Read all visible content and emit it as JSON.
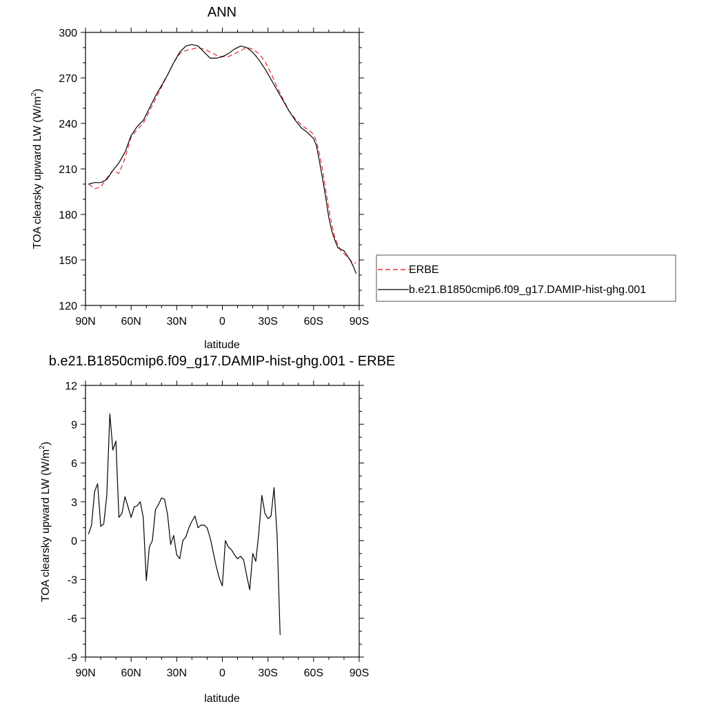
{
  "chart_data": [
    {
      "type": "line",
      "title": "ANN",
      "xlabel": "latitude",
      "ylabel": "TOA clearsky upward LW (W/m",
      "ylabel_sup": "2",
      "ylabel_close": ")",
      "x_direction": "north-to-south",
      "xlim": [
        90,
        -90
      ],
      "ylim": [
        120,
        300
      ],
      "xticks": [
        {
          "value": 90,
          "label": "90N"
        },
        {
          "value": 60,
          "label": "60N"
        },
        {
          "value": 30,
          "label": "30N"
        },
        {
          "value": 0,
          "label": "0"
        },
        {
          "value": -30,
          "label": "30S"
        },
        {
          "value": -60,
          "label": "60S"
        },
        {
          "value": -90,
          "label": "90S"
        }
      ],
      "yticks": [
        120,
        150,
        180,
        210,
        240,
        270,
        300
      ],
      "legend_position": "right",
      "series": [
        {
          "name": "ERBE",
          "color": "#e8262b",
          "style": "dashed",
          "x": [
            88,
            84,
            80,
            76,
            72,
            68,
            64,
            60,
            56,
            52,
            48,
            44,
            40,
            36,
            32,
            28,
            24,
            20,
            16,
            12,
            8,
            4,
            0,
            -4,
            -8,
            -12,
            -16,
            -20,
            -24,
            -28,
            -32,
            -36,
            -40,
            -44,
            -48,
            -52,
            -56,
            -60,
            -62,
            -64,
            -66,
            -68,
            -70,
            -72,
            -74,
            -76,
            -78,
            -80,
            -82,
            -84,
            -86,
            -88
          ],
          "y": [
            200,
            197,
            198,
            204,
            209,
            207,
            217,
            231,
            236,
            240,
            248,
            256,
            264,
            272,
            280,
            286,
            288,
            289,
            290,
            289,
            287,
            285,
            284,
            284,
            286,
            288,
            290,
            289,
            286,
            281,
            273,
            264,
            256,
            248,
            243,
            239,
            236,
            233,
            228,
            219,
            209,
            196,
            184,
            173,
            165,
            160,
            156,
            154,
            152,
            150,
            148,
            148
          ]
        },
        {
          "name": "b.e21.B1850cmip6.f09_g17.DAMIP-hist-ghg.001",
          "color": "#000000",
          "style": "solid",
          "x": [
            88,
            84,
            80,
            76,
            72,
            68,
            64,
            60,
            56,
            52,
            48,
            44,
            40,
            36,
            32,
            28,
            24,
            20,
            16,
            12,
            8,
            4,
            0,
            -4,
            -8,
            -12,
            -16,
            -20,
            -24,
            -28,
            -32,
            -36,
            -40,
            -44,
            -48,
            -52,
            -56,
            -60,
            -62,
            -64,
            -66,
            -68,
            -70,
            -72,
            -74,
            -76,
            -78,
            -80,
            -82,
            -84,
            -86,
            -88
          ],
          "y": [
            200,
            201,
            201,
            203,
            209,
            214,
            221,
            232,
            238,
            242,
            250,
            258,
            265,
            272,
            280,
            287,
            291,
            292,
            291,
            287,
            283,
            283,
            284,
            286,
            289,
            291,
            290,
            287,
            282,
            276,
            269,
            262,
            255,
            248,
            242,
            237,
            234,
            230,
            225,
            214,
            203,
            191,
            178,
            169,
            163,
            158,
            157,
            156,
            153,
            150,
            146,
            141
          ]
        }
      ]
    },
    {
      "type": "line",
      "title": "b.e21.B1850cmip6.f09_g17.DAMIP-hist-ghg.001 - ERBE",
      "xlabel": "latitude",
      "ylabel": "TOA clearsky upward LW (W/m",
      "ylabel_sup": "2",
      "ylabel_close": ")",
      "x_direction": "north-to-south",
      "xlim": [
        90,
        -90
      ],
      "ylim": [
        -9,
        12
      ],
      "xticks": [
        {
          "value": 90,
          "label": "90N"
        },
        {
          "value": 60,
          "label": "60N"
        },
        {
          "value": 30,
          "label": "30N"
        },
        {
          "value": 0,
          "label": "0"
        },
        {
          "value": -30,
          "label": "30S"
        },
        {
          "value": -60,
          "label": "60S"
        },
        {
          "value": -90,
          "label": "90S"
        }
      ],
      "yticks": [
        -9,
        -6,
        -3,
        0,
        3,
        6,
        9,
        12
      ],
      "series": [
        {
          "color": "#000000",
          "style": "solid",
          "x": [
            88,
            86,
            84,
            82,
            80,
            78,
            76,
            74,
            72,
            70,
            68,
            66,
            64,
            62,
            60,
            58,
            56,
            54,
            52,
            50,
            48,
            46,
            44,
            42,
            40,
            38,
            36,
            34,
            32,
            30,
            28,
            26,
            24,
            22,
            20,
            18,
            16,
            14,
            12,
            10,
            8,
            6,
            4,
            2,
            0,
            -2,
            -4,
            -6,
            -8,
            -10,
            -12,
            -14,
            -16,
            -18,
            -20,
            -22,
            -24,
            -26,
            -28,
            -30,
            -32,
            -34,
            -36,
            -38,
            -40,
            -42,
            -44,
            -46,
            -48,
            -50,
            -52,
            -54,
            -56,
            -58,
            -60,
            -62,
            -64,
            -66,
            -68,
            -70,
            -72,
            -74,
            -76,
            -78,
            -80,
            -82,
            -84,
            -86,
            -88
          ],
          "y": [
            0.5,
            1.2,
            3.8,
            4.4,
            1.1,
            1.3,
            3.5,
            9.8,
            7.0,
            7.7,
            1.8,
            2.1,
            3.4,
            2.6,
            1.8,
            2.6,
            2.7,
            3.0,
            1.8,
            -3.1,
            -0.5,
            0.0,
            2.4,
            2.8,
            3.3,
            3.2,
            2.0,
            -0.3,
            0.4,
            -1.1,
            -1.4,
            0.0,
            0.3,
            1.0,
            1.5,
            1.9,
            1.0,
            1.2,
            1.2,
            1.0,
            0.2,
            -0.9,
            -2.0,
            -2.9,
            -3.5,
            0.0,
            -0.5,
            -0.7,
            -1.1,
            -1.4,
            -1.2,
            -1.5,
            -2.7,
            -3.8,
            -1.0,
            -1.6,
            0.6,
            3.5,
            2.1,
            1.7,
            1.9,
            4.1,
            0.4,
            -7.3,
            null,
            null,
            null,
            null,
            null,
            null,
            null,
            null,
            null,
            null,
            null,
            null,
            null,
            null,
            null,
            null,
            null,
            null,
            null,
            null,
            null,
            null,
            null,
            null,
            null
          ]
        }
      ]
    }
  ]
}
